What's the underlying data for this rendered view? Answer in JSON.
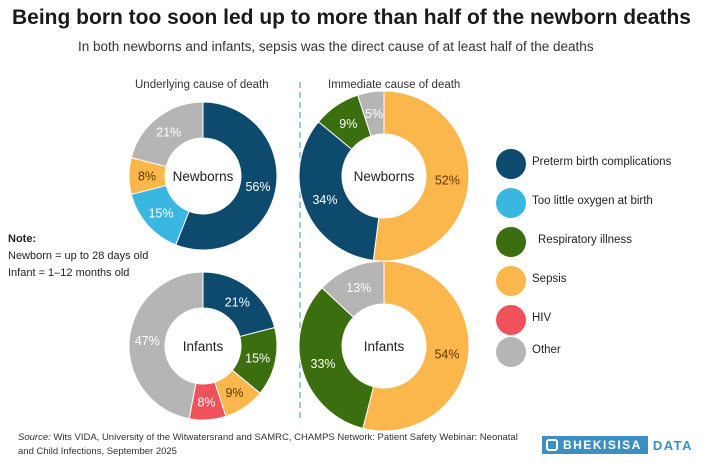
{
  "title": "Being born too soon led up to more than half of the newborn deaths",
  "subtitle": "In both newborns and infants, sepsis was the direct cause of at least half of the deaths",
  "columns": {
    "left": "Underlying cause of death",
    "right": "Immediate cause of death"
  },
  "note": {
    "heading": "Note:",
    "line1": "Newborn = up to 28 days old",
    "line2": "Infant = 1–12 months old"
  },
  "legend": [
    {
      "label": "Preterm birth complications",
      "color": "#0d4a6e"
    },
    {
      "label": "Too little oxygen at birth",
      "color": "#3ab7e0"
    },
    {
      "label": "Respiratory illness",
      "color": "#3a6e0e"
    },
    {
      "label": "Sepsis",
      "color": "#fbb64c"
    },
    {
      "label": "HIV",
      "color": "#f0525c"
    },
    {
      "label": "Other",
      "color": "#b5b5b5"
    }
  ],
  "source": {
    "prefix": "Source:",
    "text": "Wits VIDA, University of the Witwatersrand and SAMRC, CHAMPS Network: Patient Safety Webinar: Neonatal and Child Infections, September 2025"
  },
  "brand": {
    "name": "BHEKISISA",
    "suffix": "DATA"
  },
  "chart_data": [
    {
      "type": "pie",
      "group": "Underlying cause of death",
      "center_label": "Newborns",
      "slices": [
        {
          "category": "Preterm birth complications",
          "value": 56,
          "label": "56%"
        },
        {
          "category": "Too little oxygen at birth",
          "value": 15,
          "label": "15%"
        },
        {
          "category": "Sepsis",
          "value": 8,
          "label": "8%"
        },
        {
          "category": "Other",
          "value": 21,
          "label": "21%"
        }
      ]
    },
    {
      "type": "pie",
      "group": "Immediate cause of death",
      "center_label": "Newborns",
      "slices": [
        {
          "category": "Sepsis",
          "value": 52,
          "label": "52%"
        },
        {
          "category": "Preterm birth complications",
          "value": 34,
          "label": "34%"
        },
        {
          "category": "Respiratory illness",
          "value": 9,
          "label": "9%"
        },
        {
          "category": "Other",
          "value": 5,
          "label": "5%"
        }
      ]
    },
    {
      "type": "pie",
      "group": "Underlying cause of death",
      "center_label": "Infants",
      "slices": [
        {
          "category": "Preterm birth complications",
          "value": 21,
          "label": "21%"
        },
        {
          "category": "Respiratory illness",
          "value": 15,
          "label": "15%"
        },
        {
          "category": "Sepsis",
          "value": 9,
          "label": "9%"
        },
        {
          "category": "HIV",
          "value": 8,
          "label": "8%"
        },
        {
          "category": "Other",
          "value": 47,
          "label": "47%"
        }
      ]
    },
    {
      "type": "pie",
      "group": "Immediate cause of death",
      "center_label": "Infants",
      "slices": [
        {
          "category": "Sepsis",
          "value": 54,
          "label": "54%"
        },
        {
          "category": "Respiratory illness",
          "value": 33,
          "label": "33%"
        },
        {
          "category": "Other",
          "value": 13,
          "label": "13%"
        }
      ]
    }
  ]
}
